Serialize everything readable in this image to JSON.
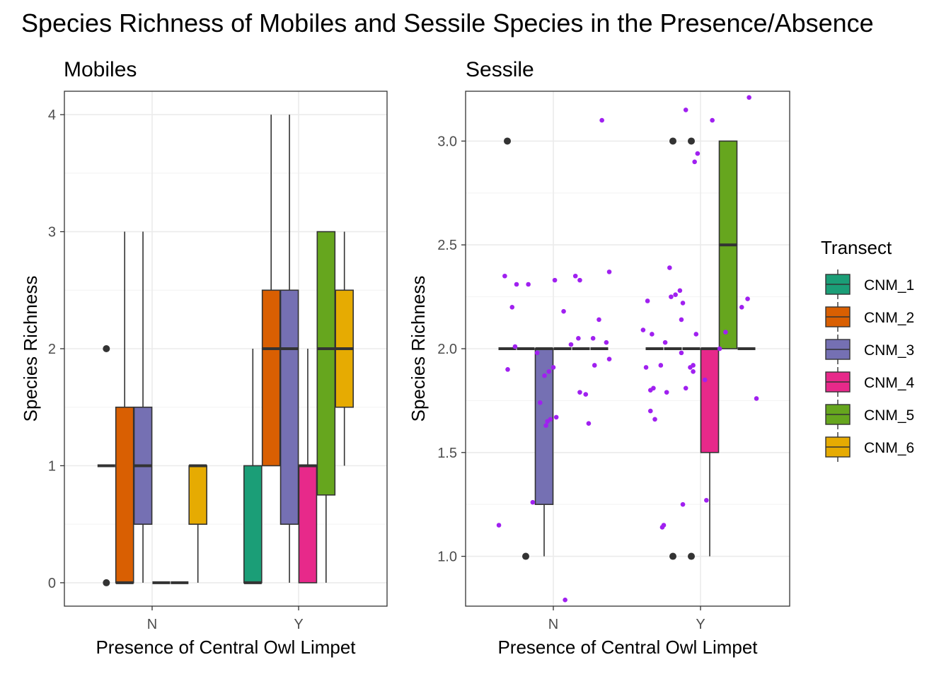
{
  "title": "Species Richness of Mobiles and Sessile Species in the Presence/Absence",
  "legend": {
    "title": "Transect",
    "placement": "right",
    "entries": [
      {
        "label": "CNM_1",
        "color": "#1b9e77"
      },
      {
        "label": "CNM_2",
        "color": "#d95f02"
      },
      {
        "label": "CNM_3",
        "color": "#7570b3"
      },
      {
        "label": "CNM_4",
        "color": "#e7298a"
      },
      {
        "label": "CNM_5",
        "color": "#66a61e"
      },
      {
        "label": "CNM_6",
        "color": "#e6ab02"
      }
    ]
  },
  "chart_data": [
    {
      "type": "boxplot",
      "panel": "Mobiles",
      "title": "Mobiles",
      "xlabel": "Presence of Central Owl Limpet",
      "ylabel": "Species Richness",
      "categories": [
        "N",
        "Y"
      ],
      "ylim": [
        -0.2,
        4.2
      ],
      "yticks": [
        0,
        1,
        2,
        3,
        4
      ],
      "grid": true,
      "groups": [
        "CNM_1",
        "CNM_2",
        "CNM_3",
        "CNM_4",
        "CNM_5",
        "CNM_6"
      ],
      "boxes": [
        {
          "x": "N",
          "group": "CNM_1",
          "min": 1,
          "q1": 1,
          "median": 1,
          "q3": 1,
          "max": 1,
          "outliers": [
            0,
            2
          ]
        },
        {
          "x": "N",
          "group": "CNM_2",
          "min": 0,
          "q1": 0,
          "median": 0,
          "q3": 1.5,
          "max": 3,
          "outliers": []
        },
        {
          "x": "N",
          "group": "CNM_3",
          "min": 0,
          "q1": 0.5,
          "median": 1,
          "q3": 1.5,
          "max": 3,
          "outliers": []
        },
        {
          "x": "N",
          "group": "CNM_4",
          "min": 0,
          "q1": 0,
          "median": 0,
          "q3": 0,
          "max": 0,
          "outliers": []
        },
        {
          "x": "N",
          "group": "CNM_5",
          "min": 0,
          "q1": 0,
          "median": 0,
          "q3": 0,
          "max": 0,
          "outliers": []
        },
        {
          "x": "N",
          "group": "CNM_6",
          "min": 0,
          "q1": 0.5,
          "median": 1,
          "q3": 1,
          "max": 1,
          "outliers": []
        },
        {
          "x": "Y",
          "group": "CNM_1",
          "min": 0,
          "q1": 0,
          "median": 0,
          "q3": 1,
          "max": 2,
          "outliers": []
        },
        {
          "x": "Y",
          "group": "CNM_2",
          "min": 1,
          "q1": 1,
          "median": 2,
          "q3": 2.5,
          "max": 4,
          "outliers": []
        },
        {
          "x": "Y",
          "group": "CNM_3",
          "min": 0,
          "q1": 0.5,
          "median": 2,
          "q3": 2.5,
          "max": 4,
          "outliers": []
        },
        {
          "x": "Y",
          "group": "CNM_4",
          "min": 0,
          "q1": 0,
          "median": 1,
          "q3": 1,
          "max": 2,
          "outliers": []
        },
        {
          "x": "Y",
          "group": "CNM_5",
          "min": 0,
          "q1": 0.75,
          "median": 2,
          "q3": 3,
          "max": 3,
          "outliers": []
        },
        {
          "x": "Y",
          "group": "CNM_6",
          "min": 1,
          "q1": 1.5,
          "median": 2,
          "q3": 2.5,
          "max": 3,
          "outliers": []
        }
      ]
    },
    {
      "type": "boxplot",
      "panel": "Sessile",
      "title": "Sessile",
      "xlabel": "Presence of Central Owl Limpet",
      "ylabel": "Species Richness",
      "categories": [
        "N",
        "Y"
      ],
      "ylim": [
        0.76,
        3.24
      ],
      "yticks": [
        1.0,
        1.5,
        2.0,
        2.5,
        3.0
      ],
      "ytick_labels": [
        "1.0",
        "1.5",
        "2.0",
        "2.5",
        "3.0"
      ],
      "grid": true,
      "groups": [
        "CNM_1",
        "CNM_2",
        "CNM_3",
        "CNM_4",
        "CNM_5",
        "CNM_6"
      ],
      "boxes": [
        {
          "x": "N",
          "group": "CNM_1",
          "min": 2,
          "q1": 2,
          "median": 2,
          "q3": 2,
          "max": 2,
          "outliers": [
            3
          ]
        },
        {
          "x": "N",
          "group": "CNM_2",
          "min": 2,
          "q1": 2,
          "median": 2,
          "q3": 2,
          "max": 2,
          "outliers": [
            1
          ]
        },
        {
          "x": "N",
          "group": "CNM_3",
          "min": 1,
          "q1": 1.25,
          "median": 2,
          "q3": 2,
          "max": 2,
          "outliers": []
        },
        {
          "x": "N",
          "group": "CNM_4",
          "min": 2,
          "q1": 2,
          "median": 2,
          "q3": 2,
          "max": 2,
          "outliers": []
        },
        {
          "x": "N",
          "group": "CNM_5",
          "min": 2,
          "q1": 2,
          "median": 2,
          "q3": 2,
          "max": 2,
          "outliers": []
        },
        {
          "x": "N",
          "group": "CNM_6",
          "min": 2,
          "q1": 2,
          "median": 2,
          "q3": 2,
          "max": 2,
          "outliers": []
        },
        {
          "x": "Y",
          "group": "CNM_1",
          "min": 2,
          "q1": 2,
          "median": 2,
          "q3": 2,
          "max": 2,
          "outliers": []
        },
        {
          "x": "Y",
          "group": "CNM_2",
          "min": 2,
          "q1": 2,
          "median": 2,
          "q3": 2,
          "max": 2,
          "outliers": [
            1,
            3
          ]
        },
        {
          "x": "Y",
          "group": "CNM_3",
          "min": 2,
          "q1": 2,
          "median": 2,
          "q3": 2,
          "max": 2,
          "outliers": [
            1,
            3
          ]
        },
        {
          "x": "Y",
          "group": "CNM_4",
          "min": 1,
          "q1": 1.5,
          "median": 2,
          "q3": 2,
          "max": 2,
          "outliers": []
        },
        {
          "x": "Y",
          "group": "CNM_5",
          "min": 2,
          "q1": 2,
          "median": 2.5,
          "q3": 3,
          "max": 3,
          "outliers": []
        },
        {
          "x": "Y",
          "group": "CNM_6",
          "min": 2,
          "q1": 2,
          "median": 2,
          "q3": 2,
          "max": 2,
          "outliers": []
        }
      ],
      "jitter_color": "#a020f0",
      "jitter_points": [
        {
          "x": -0.37,
          "y": 1.15
        },
        {
          "x": -0.33,
          "y": 2.35
        },
        {
          "x": -0.31,
          "y": 1.9
        },
        {
          "x": -0.28,
          "y": 2.2
        },
        {
          "x": -0.26,
          "y": 2.01
        },
        {
          "x": -0.25,
          "y": 2.31
        },
        {
          "x": -0.17,
          "y": 2.31
        },
        {
          "x": -0.14,
          "y": 1.26
        },
        {
          "x": -0.11,
          "y": 1.98
        },
        {
          "x": -0.09,
          "y": 1.74
        },
        {
          "x": -0.06,
          "y": 1.87
        },
        {
          "x": -0.05,
          "y": 1.63
        },
        {
          "x": -0.04,
          "y": 1.65
        },
        {
          "x": -0.03,
          "y": 1.89
        },
        {
          "x": -0.02,
          "y": 1.66
        },
        {
          "x": 0.02,
          "y": 1.67
        },
        {
          "x": 0.0,
          "y": 1.91
        },
        {
          "x": 0.01,
          "y": 2.33
        },
        {
          "x": 0.07,
          "y": 2.18
        },
        {
          "x": 0.08,
          "y": 0.79
        },
        {
          "x": 0.12,
          "y": 2.02
        },
        {
          "x": 0.15,
          "y": 2.35
        },
        {
          "x": 0.17,
          "y": 2.05
        },
        {
          "x": 0.18,
          "y": 2.33
        },
        {
          "x": 0.18,
          "y": 1.79
        },
        {
          "x": 0.22,
          "y": 1.78
        },
        {
          "x": 0.24,
          "y": 1.64
        },
        {
          "x": 0.27,
          "y": 2.05
        },
        {
          "x": 0.28,
          "y": 1.92
        },
        {
          "x": 0.31,
          "y": 2.14
        },
        {
          "x": 0.33,
          "y": 3.1
        },
        {
          "x": 0.36,
          "y": 2.03
        },
        {
          "x": 0.38,
          "y": 2.37
        },
        {
          "x": 0.38,
          "y": 1.95
        },
        {
          "x": 0.61,
          "y": 2.09
        },
        {
          "x": 0.63,
          "y": 1.91
        },
        {
          "x": 0.64,
          "y": 2.23
        },
        {
          "x": 0.66,
          "y": 1.8
        },
        {
          "x": 0.66,
          "y": 1.7
        },
        {
          "x": 0.67,
          "y": 2.07
        },
        {
          "x": 0.68,
          "y": 1.81
        },
        {
          "x": 0.69,
          "y": 1.66
        },
        {
          "x": 0.73,
          "y": 1.92
        },
        {
          "x": 0.74,
          "y": 1.14
        },
        {
          "x": 0.75,
          "y": 1.15
        },
        {
          "x": 0.76,
          "y": 2.03
        },
        {
          "x": 0.77,
          "y": 1.79
        },
        {
          "x": 0.79,
          "y": 2.39
        },
        {
          "x": 0.8,
          "y": 2.25
        },
        {
          "x": 0.83,
          "y": 2.26
        },
        {
          "x": 0.86,
          "y": 2.28
        },
        {
          "x": 0.87,
          "y": 2.14
        },
        {
          "x": 0.87,
          "y": 1.98
        },
        {
          "x": 0.88,
          "y": 2.22
        },
        {
          "x": 0.88,
          "y": 1.25
        },
        {
          "x": 0.9,
          "y": 3.15
        },
        {
          "x": 0.9,
          "y": 1.81
        },
        {
          "x": 0.93,
          "y": 1.91
        },
        {
          "x": 0.95,
          "y": 1.92
        },
        {
          "x": 0.95,
          "y": 1.89
        },
        {
          "x": 0.96,
          "y": 2.9
        },
        {
          "x": 0.97,
          "y": 2.07
        },
        {
          "x": 0.98,
          "y": 2.94
        },
        {
          "x": 1.03,
          "y": 1.85
        },
        {
          "x": 1.04,
          "y": 1.27
        },
        {
          "x": 1.08,
          "y": 3.1
        },
        {
          "x": 1.13,
          "y": 2.0
        },
        {
          "x": 1.17,
          "y": 2.08
        },
        {
          "x": 1.28,
          "y": 2.2
        },
        {
          "x": 1.32,
          "y": 2.24
        },
        {
          "x": 1.33,
          "y": 3.21
        },
        {
          "x": 1.38,
          "y": 1.76
        }
      ]
    }
  ]
}
